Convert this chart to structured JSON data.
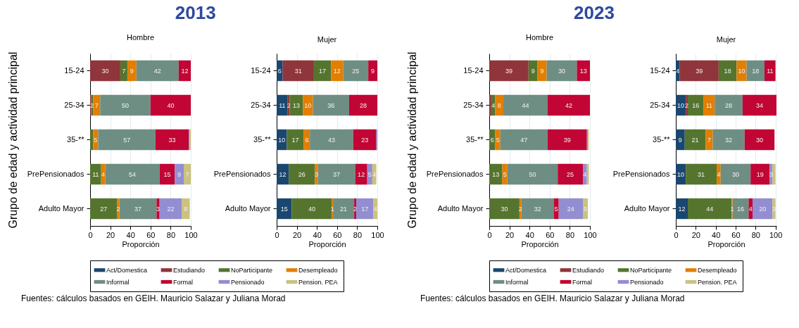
{
  "chart_data": [
    {
      "type": "bar",
      "title": "2013",
      "subtitle": "Hombre",
      "xlabel": "Proporción",
      "ylabel": "Grupo de edad y actividad principal",
      "orientation": "horizontal",
      "stacked": true,
      "grid": "x",
      "legend": "bottom",
      "xlim": [
        0,
        100
      ],
      "xticks": [
        0,
        20,
        40,
        60,
        80,
        100
      ],
      "categories": [
        "15-24",
        "25-34",
        "35-**",
        "PrePensionados",
        "Adulto Mayor"
      ],
      "annotations": [
        "Fuentes: cálculos basados en GEIH. Mauricio Salazar y Juliana Morad"
      ],
      "series": [
        {
          "name": "Act/Domestica",
          "color": "#1a476f",
          "values": [
            0,
            0,
            0,
            0,
            0
          ],
          "value_labels": [
            null,
            null,
            null,
            null,
            null
          ]
        },
        {
          "name": "Estudiando",
          "color": "#90353b",
          "values": [
            30,
            1,
            0,
            0,
            0
          ],
          "value_labels": [
            "30",
            null,
            null,
            null,
            null
          ]
        },
        {
          "name": "NoParticipante",
          "color": "#55752f",
          "values": [
            7,
            2,
            3,
            11,
            27
          ],
          "value_labels": [
            "7",
            "2",
            null,
            "11",
            "27"
          ]
        },
        {
          "name": "Desempleado",
          "color": "#e37e00",
          "values": [
            9,
            7,
            5,
            4,
            2
          ],
          "value_labels": [
            "9",
            "7",
            "5",
            "4",
            "2"
          ]
        },
        {
          "name": "Informal",
          "color": "#6e8e84",
          "values": [
            42,
            50,
            57,
            54,
            37
          ],
          "value_labels": [
            "42",
            "50",
            "57",
            "54",
            "37"
          ]
        },
        {
          "name": "Formal",
          "color": "#c10534",
          "values": [
            12,
            40,
            33,
            15,
            3
          ],
          "value_labels": [
            "12",
            "40",
            "33",
            "15",
            "3"
          ]
        },
        {
          "name": "Pensionado",
          "color": "#938dd2",
          "values": [
            0,
            0,
            1,
            9,
            22
          ],
          "value_labels": [
            null,
            null,
            null,
            "9",
            "22"
          ]
        },
        {
          "name": "Pension. PEA",
          "color": "#cac27e",
          "values": [
            0,
            0,
            1,
            7,
            8
          ],
          "value_labels": [
            null,
            null,
            null,
            "7",
            "8"
          ]
        }
      ]
    },
    {
      "type": "bar",
      "subtitle": "Mujer",
      "xlabel": "Proporción",
      "orientation": "horizontal",
      "stacked": true,
      "grid": "x",
      "legend": "bottom",
      "xlim": [
        0,
        100
      ],
      "xticks": [
        0,
        20,
        40,
        60,
        80,
        100
      ],
      "categories": [
        "15-24",
        "25-34",
        "35-**",
        "PrePensionados",
        "Adulto Mayor"
      ],
      "series": [
        {
          "name": "Act/Domestica",
          "color": "#1a476f",
          "values": [
            6,
            11,
            10,
            12,
            15
          ],
          "value_labels": [
            "6",
            "11",
            "10",
            "12",
            "15"
          ]
        },
        {
          "name": "Estudiando",
          "color": "#90353b",
          "values": [
            31,
            2,
            0,
            0,
            0
          ],
          "value_labels": [
            "31",
            "2",
            null,
            null,
            null
          ]
        },
        {
          "name": "NoParticipante",
          "color": "#55752f",
          "values": [
            17,
            13,
            17,
            26,
            40
          ],
          "value_labels": [
            "17",
            "13",
            "17",
            "26",
            "40"
          ]
        },
        {
          "name": "Desempleado",
          "color": "#e37e00",
          "values": [
            12,
            10,
            6,
            3,
            1
          ],
          "value_labels": [
            "12",
            "10",
            "6",
            "3",
            "1"
          ]
        },
        {
          "name": "Informal",
          "color": "#6e8e84",
          "values": [
            25,
            36,
            43,
            37,
            21
          ],
          "value_labels": [
            "25",
            "36",
            "43",
            "37",
            "21"
          ]
        },
        {
          "name": "Formal",
          "color": "#c10534",
          "values": [
            9,
            28,
            23,
            12,
            2
          ],
          "value_labels": [
            "9",
            "28",
            "23",
            "12",
            "2"
          ]
        },
        {
          "name": "Pensionado",
          "color": "#938dd2",
          "values": [
            0,
            0,
            1,
            5,
            17
          ],
          "value_labels": [
            null,
            null,
            null,
            "5",
            "17"
          ]
        },
        {
          "name": "Pension. PEA",
          "color": "#cac27e",
          "values": [
            0,
            0,
            0,
            4,
            4
          ],
          "value_labels": [
            null,
            null,
            null,
            "4",
            "4"
          ]
        }
      ]
    },
    {
      "type": "bar",
      "title": "2023",
      "subtitle": "Hombre",
      "xlabel": "Proporción",
      "ylabel": "Grupo de edad y actividad principal",
      "orientation": "horizontal",
      "stacked": true,
      "grid": "x",
      "legend": "bottom",
      "xlim": [
        0,
        100
      ],
      "xticks": [
        0,
        20,
        40,
        60,
        80,
        100
      ],
      "categories": [
        "15-24",
        "25-34",
        "35-**",
        "PrePensionados",
        "Adulto Mayor"
      ],
      "annotations": [
        "Fuentes: cálculos basados en GEIH. Mauricio Salazar y Juliana Morad"
      ],
      "series": [
        {
          "name": "Act/Domestica",
          "color": "#1a476f",
          "values": [
            0,
            0,
            0,
            0,
            0
          ],
          "value_labels": [
            null,
            null,
            null,
            null,
            null
          ]
        },
        {
          "name": "Estudiando",
          "color": "#90353b",
          "values": [
            39,
            2,
            0,
            0,
            0
          ],
          "value_labels": [
            "39",
            null,
            null,
            null,
            null
          ]
        },
        {
          "name": "NoParticipante",
          "color": "#55752f",
          "values": [
            9,
            4,
            6,
            13,
            30
          ],
          "value_labels": [
            "9",
            "4",
            "6",
            "13",
            "30"
          ]
        },
        {
          "name": "Desempleado",
          "color": "#e37e00",
          "values": [
            9,
            8,
            5,
            5,
            2
          ],
          "value_labels": [
            "9",
            "8",
            "5",
            "5",
            "2"
          ]
        },
        {
          "name": "Informal",
          "color": "#6e8e84",
          "values": [
            30,
            44,
            47,
            50,
            32
          ],
          "value_labels": [
            "30",
            "44",
            "47",
            "50",
            "32"
          ]
        },
        {
          "name": "Formal",
          "color": "#c10534",
          "values": [
            13,
            42,
            39,
            25,
            5
          ],
          "value_labels": [
            "13",
            "42",
            "39",
            "25",
            "5"
          ]
        },
        {
          "name": "Pensionado",
          "color": "#938dd2",
          "values": [
            0,
            0,
            1,
            4,
            24
          ],
          "value_labels": [
            null,
            null,
            null,
            "4",
            "24"
          ]
        },
        {
          "name": "Pension. PEA",
          "color": "#cac27e",
          "values": [
            0,
            0,
            1,
            2,
            5
          ],
          "value_labels": [
            null,
            null,
            null,
            null,
            "5"
          ]
        }
      ]
    },
    {
      "type": "bar",
      "subtitle": "Mujer",
      "xlabel": "Proporción",
      "orientation": "horizontal",
      "stacked": true,
      "grid": "x",
      "legend": "bottom",
      "xlim": [
        0,
        101
      ],
      "xticks": [
        0,
        20,
        40,
        60,
        80,
        100
      ],
      "categories": [
        "15-24",
        "25-34",
        "35-**",
        "PrePensionados",
        "Adulto Mayor"
      ],
      "series": [
        {
          "name": "Act/Domestica",
          "color": "#1a476f",
          "values": [
            4,
            10,
            9,
            10,
            12
          ],
          "value_labels": [
            "4",
            "10",
            "9",
            "10",
            "12"
          ]
        },
        {
          "name": "Estudiando",
          "color": "#90353b",
          "values": [
            39,
            2,
            0,
            0,
            0
          ],
          "value_labels": [
            "39",
            "2",
            null,
            null,
            null
          ]
        },
        {
          "name": "NoParticipante",
          "color": "#55752f",
          "values": [
            18,
            16,
            21,
            31,
            44
          ],
          "value_labels": [
            "18",
            "16",
            "21",
            "31",
            "44"
          ]
        },
        {
          "name": "Desempleado",
          "color": "#e37e00",
          "values": [
            10,
            11,
            7,
            4,
            1
          ],
          "value_labels": [
            "10",
            "11",
            "7",
            "4",
            "1"
          ]
        },
        {
          "name": "Informal",
          "color": "#6e8e84",
          "values": [
            18,
            28,
            32,
            30,
            16
          ],
          "value_labels": [
            "18",
            "28",
            "32",
            "30",
            "16"
          ]
        },
        {
          "name": "Formal",
          "color": "#c10534",
          "values": [
            11,
            34,
            30,
            19,
            4
          ],
          "value_labels": [
            "11",
            "34",
            "30",
            "19",
            "4"
          ]
        },
        {
          "name": "Pensionado",
          "color": "#938dd2",
          "values": [
            0,
            0,
            0,
            3,
            20
          ],
          "value_labels": [
            null,
            null,
            null,
            "3",
            "20"
          ]
        },
        {
          "name": "Pension. PEA",
          "color": "#cac27e",
          "values": [
            0,
            0,
            0,
            3,
            3
          ],
          "value_labels": [
            null,
            null,
            null,
            null,
            "3"
          ]
        }
      ]
    }
  ]
}
